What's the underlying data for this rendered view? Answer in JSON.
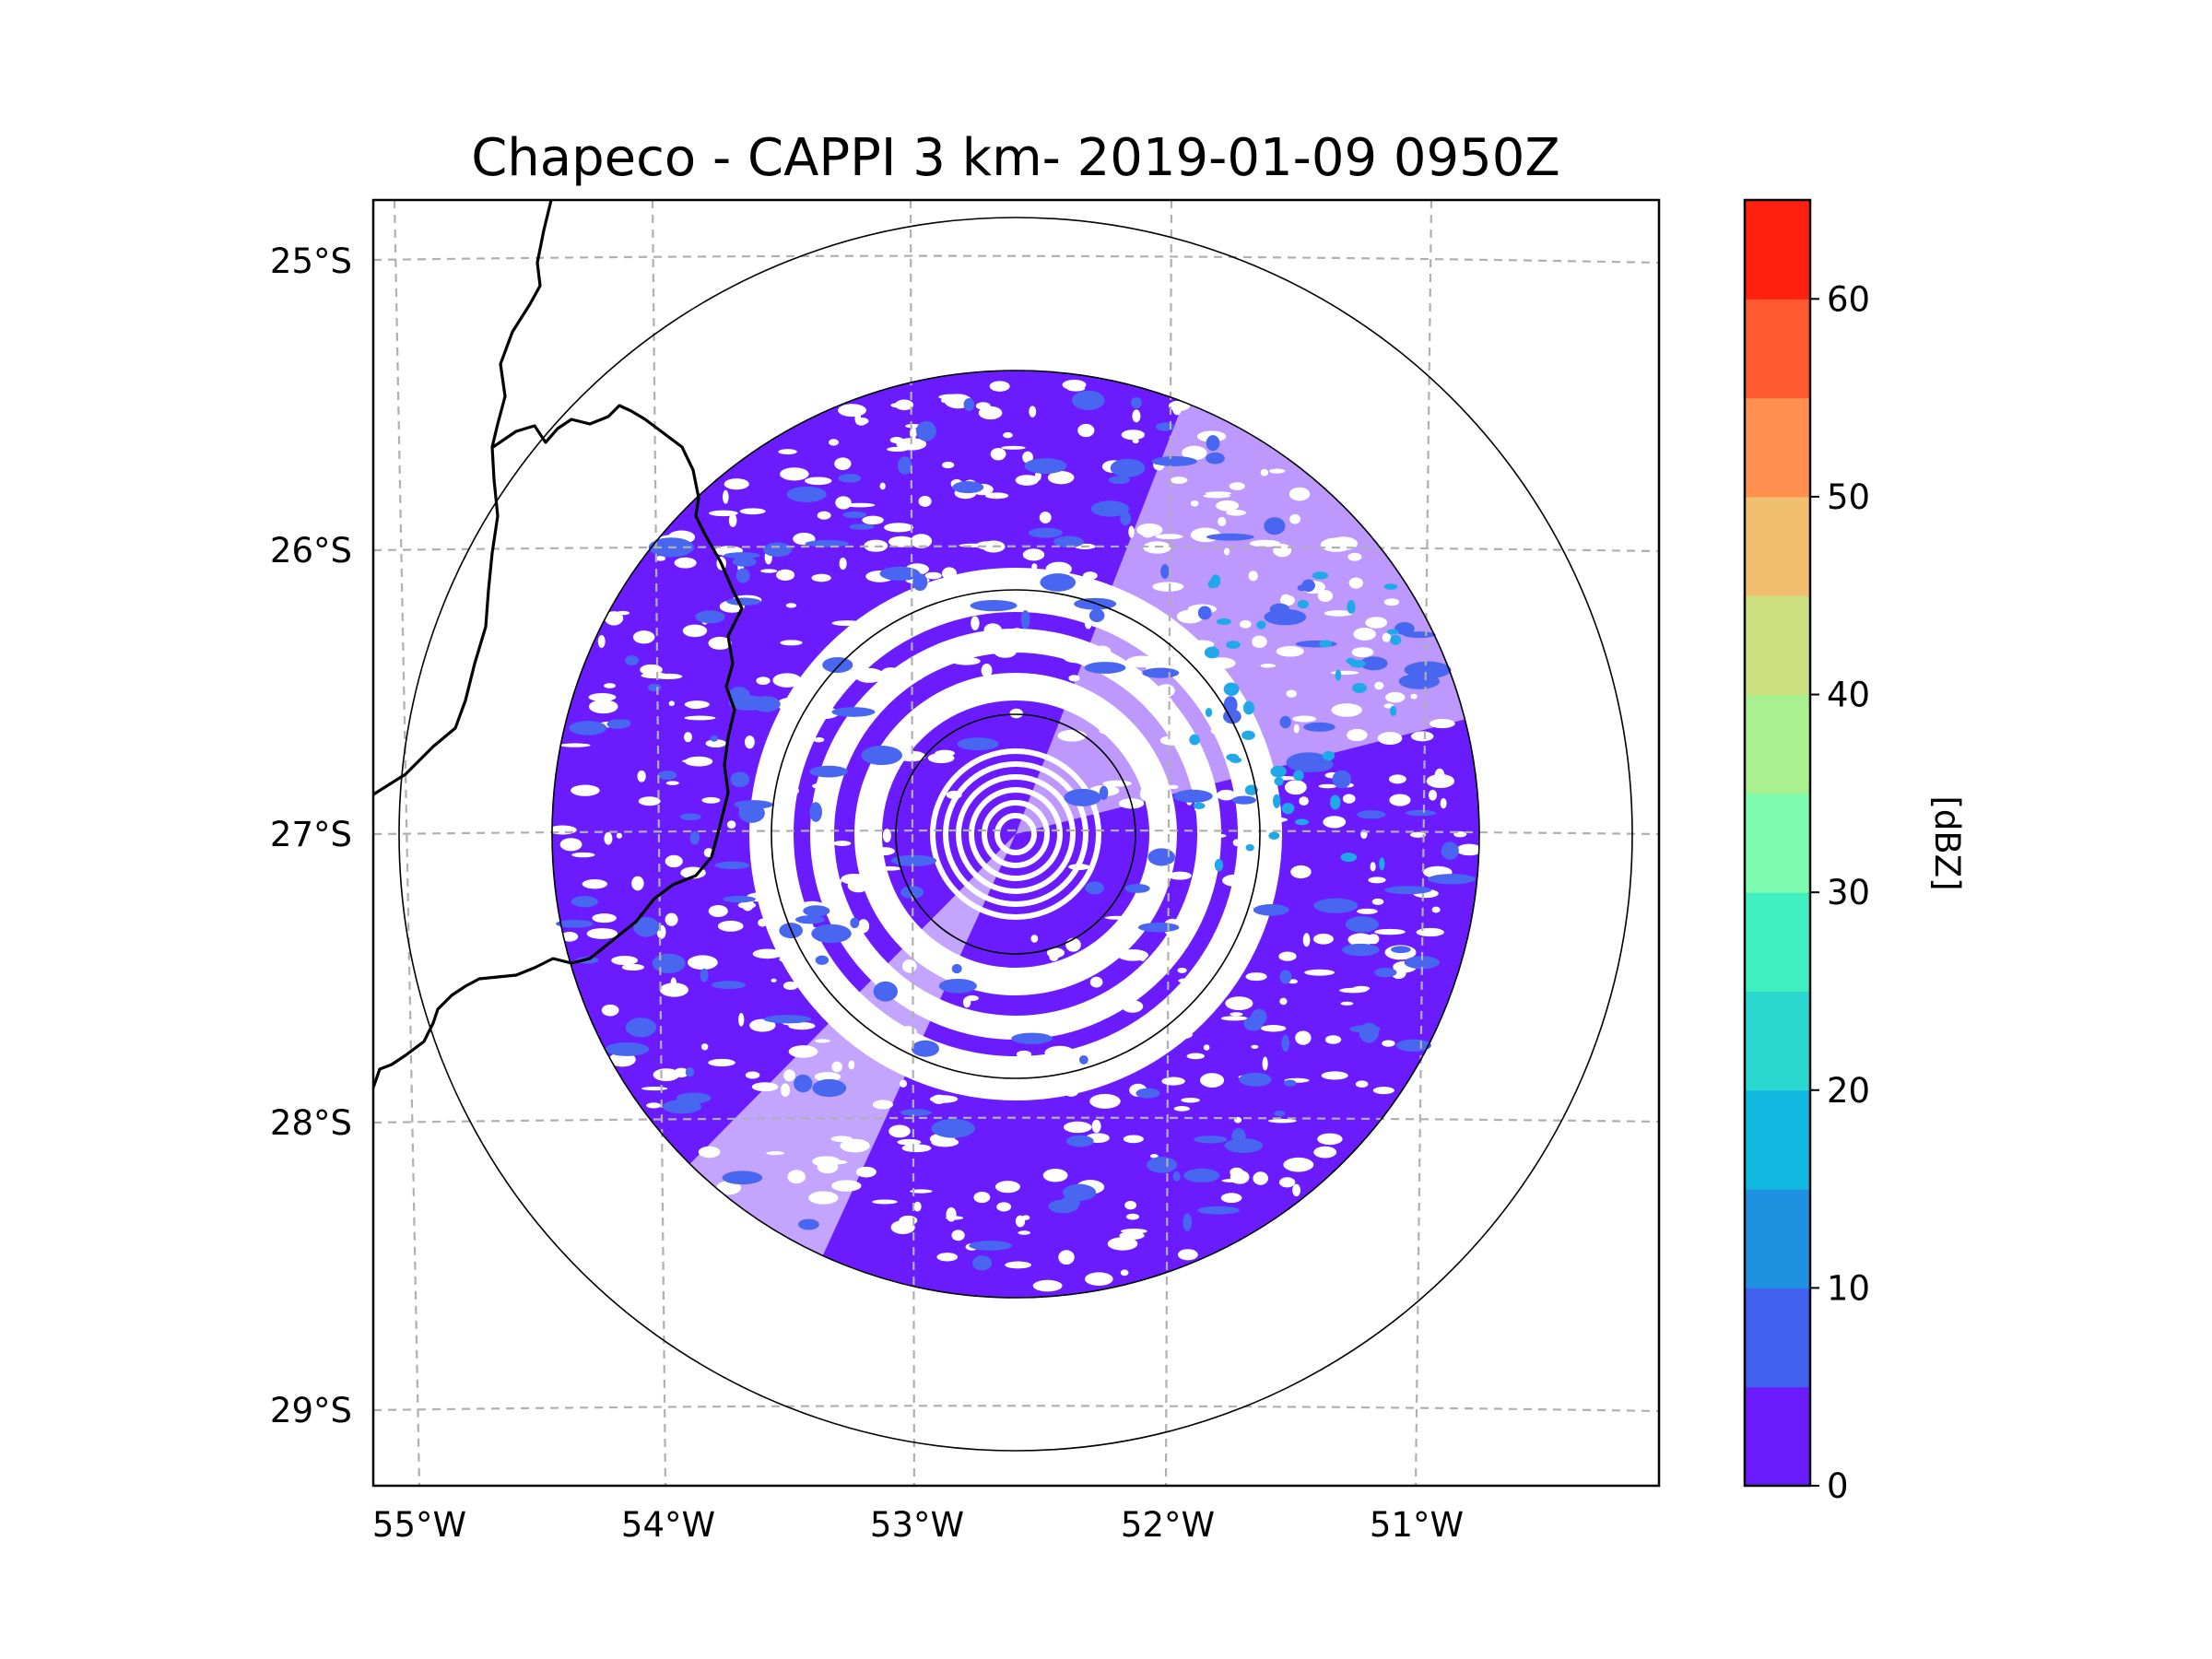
{
  "title": "Chapeco - CAPPI 3 km- 2019-01-09 0950Z",
  "map": {
    "lat_ticks": [
      "25°S",
      "26°S",
      "27°S",
      "28°S",
      "29°S"
    ],
    "lon_ticks": [
      "55°W",
      "54°W",
      "53°W",
      "52°W",
      "51°W"
    ],
    "radar_site": "Chapeco",
    "range_rings": 4,
    "field": "CAPPI 3 km reflectivity"
  },
  "colorbar": {
    "label": "[dBZ]",
    "ticks": [
      "0",
      "10",
      "20",
      "30",
      "40",
      "50",
      "60"
    ],
    "levels": [
      0,
      5,
      10,
      15,
      20,
      25,
      30,
      35,
      40,
      45,
      50,
      55,
      60,
      65
    ],
    "colors": [
      "#6a1cff",
      "#4060ee",
      "#2090e0",
      "#10b8e0",
      "#2ad8d0",
      "#40f0c0",
      "#7dfcb0",
      "#a8f090",
      "#cce080",
      "#f0c070",
      "#ff9050",
      "#ff5a30",
      "#ff2010"
    ]
  },
  "colors": {
    "echo_weak": "#6a1cff",
    "echo_moderate": "#4866f0",
    "echo_strong": "#20a8e8",
    "grid": "#b0b0b0",
    "coastline": "#000000"
  }
}
